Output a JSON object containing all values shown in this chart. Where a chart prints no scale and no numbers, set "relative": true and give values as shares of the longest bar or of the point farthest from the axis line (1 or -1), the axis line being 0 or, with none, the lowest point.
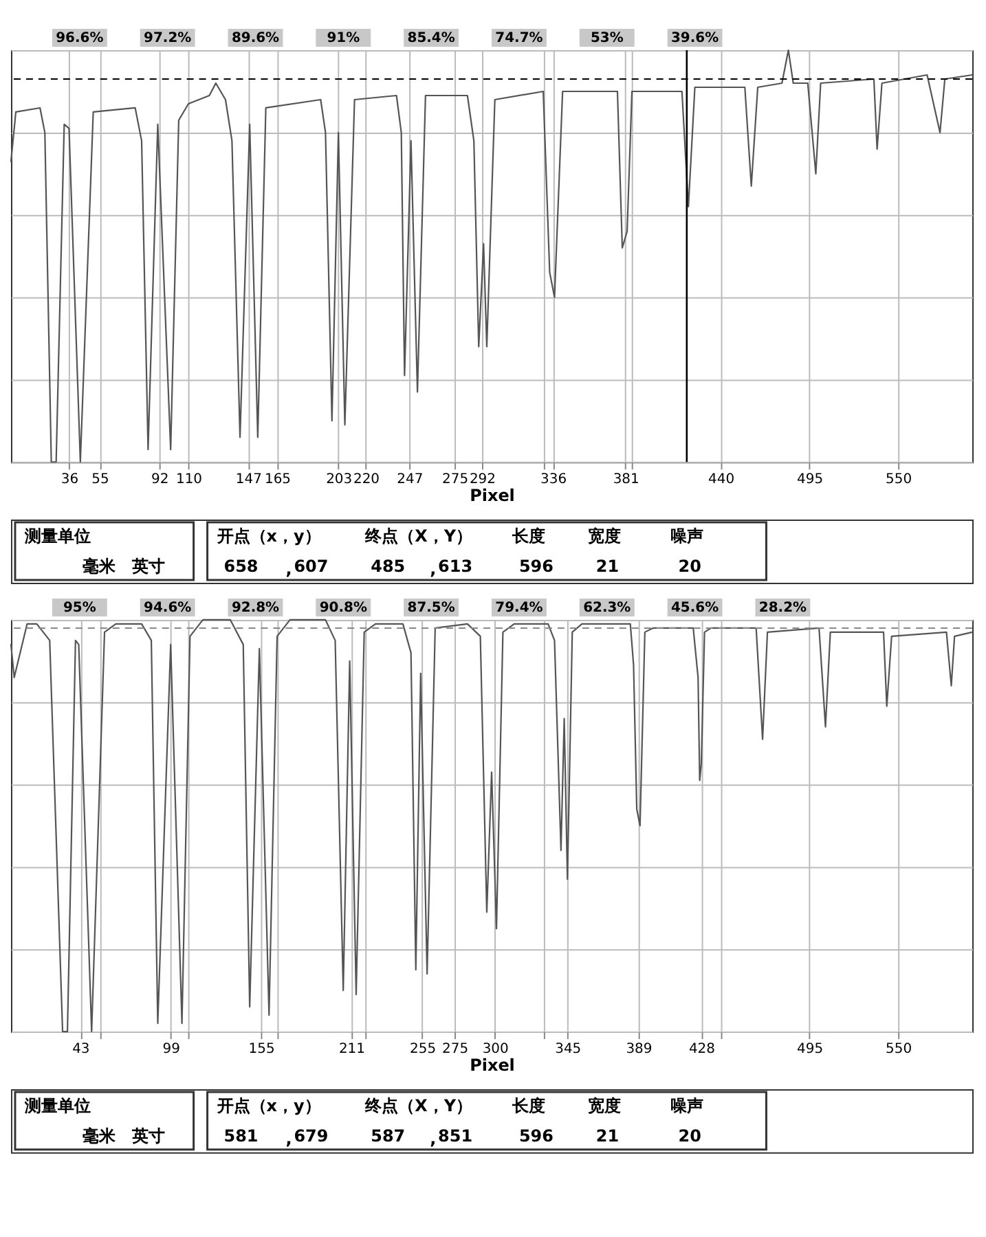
{
  "chart_data": [
    {
      "type": "line",
      "relative": true,
      "xlabel": "Pixel",
      "xlim": [
        0,
        596
      ],
      "grid": true,
      "legend": false,
      "xticks": [
        36,
        55,
        92,
        110,
        147,
        165,
        203,
        220,
        247,
        275,
        292,
        {
          "value": 330,
          "label": null
        },
        336,
        381,
        {
          "value": 385,
          "label": null
        },
        440,
        495,
        550
      ],
      "series": [
        {
          "color": "#555555",
          "line_style": "solid",
          "x": [
            0,
            3,
            18,
            21,
            25,
            28,
            33,
            36,
            43,
            51,
            77,
            81,
            85,
            91,
            99,
            104,
            110,
            123,
            127,
            133,
            137,
            142,
            148,
            153,
            158,
            192,
            195,
            199,
            203,
            207,
            213,
            239,
            242,
            244,
            248,
            252,
            257,
            283,
            287,
            290,
            293,
            295,
            300,
            330,
            334,
            337,
            342,
            376,
            379,
            382,
            385,
            416,
            420,
            424,
            455,
            459,
            463,
            478,
            482,
            485,
            494,
            499,
            502,
            535,
            537,
            540,
            568,
            576,
            579,
            596
          ],
          "values": [
            0.73,
            0.85,
            0.86,
            0.8,
            0.0,
            0.0,
            0.82,
            0.81,
            0.0,
            0.85,
            0.86,
            0.78,
            0.03,
            0.82,
            0.03,
            0.83,
            0.87,
            0.89,
            0.92,
            0.88,
            0.78,
            0.06,
            0.82,
            0.06,
            0.86,
            0.88,
            0.8,
            0.1,
            0.8,
            0.09,
            0.88,
            0.89,
            0.8,
            0.21,
            0.78,
            0.17,
            0.89,
            0.89,
            0.78,
            0.28,
            0.53,
            0.28,
            0.88,
            0.9,
            0.46,
            0.4,
            0.9,
            0.9,
            0.52,
            0.56,
            0.9,
            0.9,
            0.62,
            0.91,
            0.91,
            0.67,
            0.91,
            0.92,
            1.0,
            0.92,
            0.92,
            0.7,
            0.92,
            0.93,
            0.76,
            0.92,
            0.94,
            0.8,
            0.93,
            0.94
          ]
        }
      ],
      "ref_lines": [
        {
          "axis": "y",
          "value": 0.93,
          "color": "#000000",
          "line_style": "dashed"
        },
        {
          "axis": "x",
          "value": 419,
          "color": "#000000",
          "line_style": "solid"
        }
      ],
      "annotations": [
        "96.6%",
        "97.2%",
        "89.6%",
        "91%",
        "85.4%",
        "74.7%",
        "53%",
        "39.6%"
      ]
    },
    {
      "type": "other",
      "annotations": [
        "测量单位",
        "毫米",
        "英寸",
        "开点（x，y）",
        "终点（X，Y）",
        "长度",
        "宽度",
        "噪声",
        "658",
        ",",
        "607",
        "485",
        ",",
        "613",
        "596",
        "21",
        "20"
      ]
    },
    {
      "type": "line",
      "relative": true,
      "xlabel": "Pixel",
      "xlim": [
        0,
        596
      ],
      "grid": true,
      "legend": false,
      "xticks": [
        43,
        {
          "value": 55,
          "label": null
        },
        99,
        {
          "value": 110,
          "label": null
        },
        155,
        {
          "value": 165,
          "label": null
        },
        211,
        {
          "value": 220,
          "label": null
        },
        255,
        275,
        300,
        {
          "value": 330,
          "label": null
        },
        345,
        389,
        428,
        {
          "value": 440,
          "label": null
        },
        495,
        550
      ],
      "series": [
        {
          "color": "#555555",
          "line_style": "solid",
          "x": [
            0,
            2,
            10,
            16,
            24,
            32,
            35,
            40,
            42,
            50,
            58,
            65,
            81,
            87,
            91,
            99,
            106,
            111,
            119,
            136,
            144,
            148,
            154,
            160,
            165,
            173,
            195,
            201,
            206,
            210,
            214,
            219,
            226,
            243,
            248,
            251,
            254,
            258,
            263,
            283,
            291,
            295,
            298,
            301,
            305,
            312,
            333,
            337,
            341,
            343,
            345,
            348,
            354,
            384,
            386,
            388,
            390,
            393,
            398,
            423,
            426,
            427,
            428,
            430,
            434,
            462,
            466,
            469,
            501,
            505,
            508,
            541,
            543,
            546,
            580,
            583,
            585,
            596
          ],
          "values": [
            0.94,
            0.86,
            0.99,
            0.99,
            0.95,
            0.0,
            0.0,
            0.95,
            0.94,
            0.0,
            0.97,
            0.99,
            0.99,
            0.95,
            0.02,
            0.94,
            0.02,
            0.96,
            1.0,
            1.0,
            0.94,
            0.06,
            0.93,
            0.04,
            0.96,
            1.0,
            1.0,
            0.95,
            0.1,
            0.9,
            0.09,
            0.97,
            0.99,
            0.99,
            0.92,
            0.15,
            0.87,
            0.14,
            0.98,
            0.99,
            0.96,
            0.29,
            0.63,
            0.25,
            0.97,
            0.99,
            0.99,
            0.95,
            0.44,
            0.76,
            0.37,
            0.97,
            0.99,
            0.99,
            0.89,
            0.54,
            0.5,
            0.97,
            0.98,
            0.98,
            0.86,
            0.61,
            0.65,
            0.97,
            0.98,
            0.98,
            0.71,
            0.97,
            0.98,
            0.74,
            0.97,
            0.97,
            0.79,
            0.96,
            0.97,
            0.84,
            0.96,
            0.97
          ]
        }
      ],
      "ref_lines": [
        {
          "axis": "y",
          "value": 0.98,
          "color": "#888888",
          "line_style": "dashed"
        }
      ],
      "annotations": [
        "95%",
        "94.6%",
        "92.8%",
        "90.8%",
        "87.5%",
        "79.4%",
        "62.3%",
        "45.6%",
        "28.2%"
      ]
    },
    {
      "type": "other",
      "annotations": [
        "测量单位",
        "毫米",
        "英寸",
        "开点（x，y）",
        "终点（X，Y）",
        "长度",
        "宽度",
        "噪声",
        "581",
        ",",
        "679",
        "587",
        ",",
        "851",
        "596",
        "21",
        "20"
      ]
    }
  ]
}
